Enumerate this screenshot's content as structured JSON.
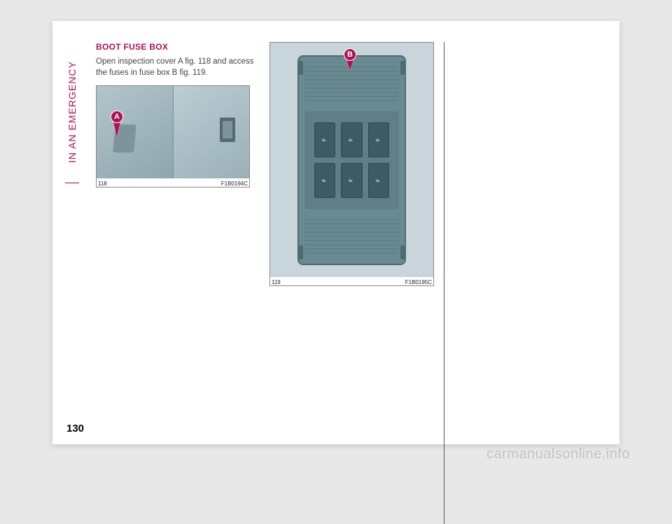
{
  "side_label": "IN AN EMERGENCY",
  "heading": "BOOT FUSE BOX",
  "body_text": "Open inspection cover A fig. 118 and access the fuses in fuse box B fig. 119.",
  "fig118": {
    "num": "118",
    "code": "F1B0194C",
    "marker": "A",
    "bg_color": "#a9bfc6"
  },
  "fig119": {
    "num": "119",
    "code": "F1B0195C",
    "marker": "B",
    "bg_color": "#c8d6db",
    "fusebox_color": "#6a8a92",
    "fuse_count": 6
  },
  "colors": {
    "accent": "#b01050",
    "text": "#444444",
    "page_bg": "#ffffff",
    "outer_bg": "#e8e8e8"
  },
  "page_number": "130",
  "watermark": "carmanualsonline.info"
}
